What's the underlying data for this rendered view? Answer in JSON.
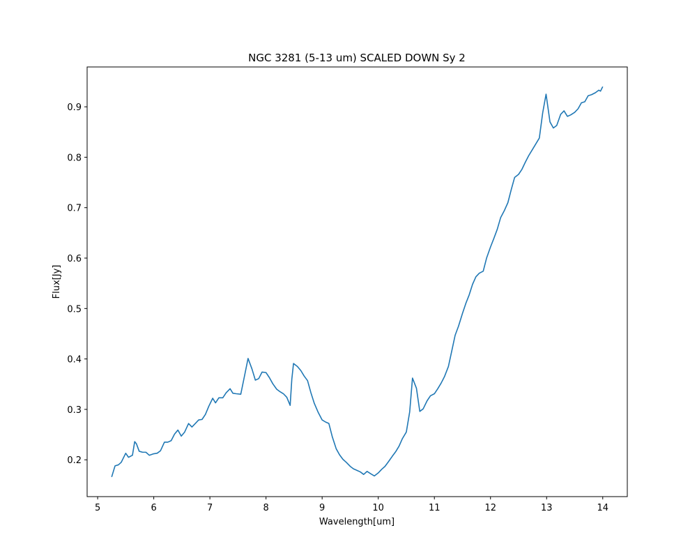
{
  "chart_data": {
    "type": "line",
    "title": "NGC 3281 (5-13 um) SCALED DOWN Sy 2",
    "x_label": "Wavelength[um]",
    "y_label": "Flux[Jy]",
    "xlim": [
      4.8125,
      14.4375
    ],
    "ylim": [
      0.127,
      0.979
    ],
    "xticks": [
      5,
      6,
      7,
      8,
      9,
      10,
      11,
      12,
      13,
      14
    ],
    "yticks": [
      0.2,
      0.3,
      0.4,
      0.5,
      0.6,
      0.7,
      0.8,
      0.9
    ],
    "color": "#1f77b4",
    "x": [
      5.25,
      5.31,
      5.37,
      5.42,
      5.5,
      5.55,
      5.62,
      5.66,
      5.69,
      5.74,
      5.8,
      5.86,
      5.92,
      6.0,
      6.06,
      6.12,
      6.19,
      6.25,
      6.31,
      6.37,
      6.43,
      6.49,
      6.55,
      6.62,
      6.68,
      6.74,
      6.8,
      6.86,
      6.92,
      6.98,
      7.05,
      7.1,
      7.16,
      7.23,
      7.29,
      7.36,
      7.41,
      7.47,
      7.55,
      7.62,
      7.68,
      7.75,
      7.81,
      7.87,
      7.93,
      8.0,
      8.06,
      8.12,
      8.19,
      8.25,
      8.31,
      8.37,
      8.43,
      8.46,
      8.49,
      8.56,
      8.62,
      8.68,
      8.74,
      8.8,
      8.86,
      8.93,
      9.0,
      9.06,
      9.12,
      9.18,
      9.25,
      9.31,
      9.37,
      9.43,
      9.5,
      9.56,
      9.62,
      9.68,
      9.74,
      9.8,
      9.87,
      9.93,
      10.0,
      10.06,
      10.12,
      10.18,
      10.25,
      10.31,
      10.37,
      10.43,
      10.5,
      10.56,
      10.61,
      10.68,
      10.74,
      10.8,
      10.87,
      10.93,
      11.0,
      11.06,
      11.12,
      11.18,
      11.25,
      11.31,
      11.37,
      11.43,
      11.5,
      11.56,
      11.62,
      11.68,
      11.74,
      11.8,
      11.87,
      11.93,
      12.0,
      12.06,
      12.12,
      12.18,
      12.25,
      12.31,
      12.37,
      12.43,
      12.5,
      12.56,
      12.62,
      12.68,
      12.74,
      12.8,
      12.87,
      12.93,
      12.99,
      13.06,
      13.12,
      13.18,
      13.25,
      13.31,
      13.37,
      13.43,
      13.5,
      13.56,
      13.62,
      13.68,
      13.74,
      13.8,
      13.87,
      13.93,
      13.96,
      14.0
    ],
    "values": [
      0.166,
      0.188,
      0.19,
      0.195,
      0.213,
      0.205,
      0.209,
      0.236,
      0.232,
      0.217,
      0.215,
      0.215,
      0.209,
      0.212,
      0.213,
      0.218,
      0.235,
      0.235,
      0.238,
      0.251,
      0.259,
      0.247,
      0.255,
      0.272,
      0.265,
      0.272,
      0.279,
      0.28,
      0.29,
      0.306,
      0.322,
      0.313,
      0.323,
      0.323,
      0.333,
      0.341,
      0.332,
      0.331,
      0.33,
      0.368,
      0.401,
      0.38,
      0.358,
      0.361,
      0.374,
      0.373,
      0.363,
      0.351,
      0.34,
      0.335,
      0.331,
      0.324,
      0.308,
      0.36,
      0.391,
      0.385,
      0.377,
      0.366,
      0.357,
      0.333,
      0.312,
      0.294,
      0.279,
      0.275,
      0.272,
      0.246,
      0.222,
      0.21,
      0.201,
      0.195,
      0.187,
      0.182,
      0.179,
      0.176,
      0.171,
      0.177,
      0.172,
      0.168,
      0.174,
      0.181,
      0.187,
      0.196,
      0.207,
      0.216,
      0.227,
      0.242,
      0.255,
      0.295,
      0.362,
      0.342,
      0.296,
      0.301,
      0.317,
      0.327,
      0.331,
      0.341,
      0.352,
      0.365,
      0.385,
      0.416,
      0.447,
      0.465,
      0.49,
      0.51,
      0.527,
      0.548,
      0.563,
      0.57,
      0.574,
      0.6,
      0.622,
      0.639,
      0.657,
      0.68,
      0.695,
      0.71,
      0.736,
      0.76,
      0.766,
      0.776,
      0.79,
      0.803,
      0.814,
      0.825,
      0.838,
      0.888,
      0.925,
      0.87,
      0.858,
      0.863,
      0.885,
      0.892,
      0.881,
      0.884,
      0.889,
      0.896,
      0.908,
      0.91,
      0.922,
      0.924,
      0.928,
      0.933,
      0.931,
      0.94
    ]
  }
}
